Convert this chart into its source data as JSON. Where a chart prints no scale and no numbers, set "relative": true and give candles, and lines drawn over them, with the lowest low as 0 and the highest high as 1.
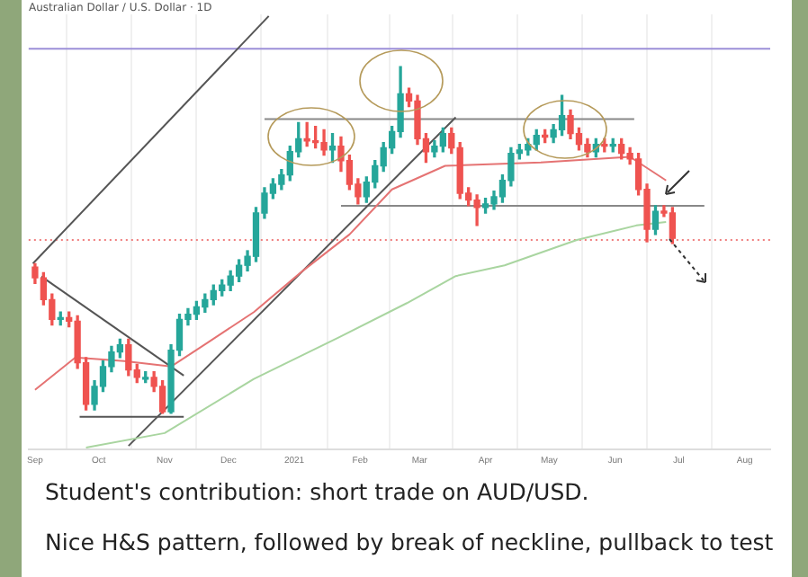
{
  "chart_data": {
    "type": "candlestick",
    "title": "Australian Dollar / U.S. Dollar · 1D",
    "relative": true,
    "legend": false,
    "grid": "x",
    "xlim": [
      "2020-08-29",
      "2021-08-13"
    ],
    "xticks": [
      {
        "value": "2020-09-01",
        "label": "Sep"
      },
      {
        "value": "2020-10-01",
        "label": "Oct"
      },
      {
        "value": "2020-11-01",
        "label": "Nov"
      },
      {
        "value": "2020-12-01",
        "label": "Dec"
      },
      {
        "value": "2021-01-01",
        "label": "2021"
      },
      {
        "value": "2021-02-01",
        "label": "Feb"
      },
      {
        "value": "2021-03-01",
        "label": "Mar"
      },
      {
        "value": "2021-04-01",
        "label": "Apr"
      },
      {
        "value": "2021-05-01",
        "label": "May"
      },
      {
        "value": "2021-06-01",
        "label": "Jun"
      },
      {
        "value": "2021-07-01",
        "label": "Jul"
      },
      {
        "value": "2021-08-01",
        "label": "Aug"
      }
    ],
    "x": [
      "2020-09-01",
      "2020-09-05",
      "2020-09-09",
      "2020-09-13",
      "2020-09-17",
      "2020-09-21",
      "2020-09-25",
      "2020-09-29",
      "2020-10-03",
      "2020-10-07",
      "2020-10-11",
      "2020-10-15",
      "2020-10-19",
      "2020-10-23",
      "2020-10-27",
      "2020-10-31",
      "2020-11-04",
      "2020-11-08",
      "2020-11-12",
      "2020-11-16",
      "2020-11-20",
      "2020-11-24",
      "2020-11-28",
      "2020-12-02",
      "2020-12-06",
      "2020-12-10",
      "2020-12-14",
      "2020-12-18",
      "2020-12-22",
      "2020-12-26",
      "2020-12-30",
      "2021-01-03",
      "2021-01-07",
      "2021-01-11",
      "2021-01-15",
      "2021-01-19",
      "2021-01-23",
      "2021-01-27",
      "2021-01-31",
      "2021-02-04",
      "2021-02-08",
      "2021-02-12",
      "2021-02-16",
      "2021-02-20",
      "2021-02-24",
      "2021-02-28",
      "2021-03-04",
      "2021-03-08",
      "2021-03-12",
      "2021-03-16",
      "2021-03-20",
      "2021-03-24",
      "2021-03-28",
      "2021-04-01",
      "2021-04-05",
      "2021-04-09",
      "2021-04-13",
      "2021-04-17",
      "2021-04-21",
      "2021-04-25",
      "2021-04-29",
      "2021-05-03",
      "2021-05-07",
      "2021-05-11",
      "2021-05-15",
      "2021-05-19",
      "2021-05-23",
      "2021-05-27",
      "2021-05-31",
      "2021-06-04",
      "2021-06-08",
      "2021-06-12",
      "2021-06-16",
      "2021-06-20",
      "2021-06-24",
      "2021-06-28"
    ],
    "ohlc": [
      [
        0.422,
        0.432,
        0.375,
        0.391
      ],
      [
        0.391,
        0.406,
        0.313,
        0.328
      ],
      [
        0.328,
        0.344,
        0.255,
        0.271
      ],
      [
        0.271,
        0.292,
        0.255,
        0.276
      ],
      [
        0.276,
        0.292,
        0.25,
        0.266
      ],
      [
        0.266,
        0.281,
        0.13,
        0.146
      ],
      [
        0.146,
        0.161,
        0.01,
        0.026
      ],
      [
        0.026,
        0.094,
        0.01,
        0.078
      ],
      [
        0.078,
        0.151,
        0.063,
        0.135
      ],
      [
        0.135,
        0.193,
        0.12,
        0.177
      ],
      [
        0.177,
        0.214,
        0.161,
        0.198
      ],
      [
        0.198,
        0.214,
        0.109,
        0.125
      ],
      [
        0.125,
        0.141,
        0.089,
        0.104
      ],
      [
        0.104,
        0.12,
        0.089,
        0.104
      ],
      [
        0.104,
        0.12,
        0.063,
        0.078
      ],
      [
        0.078,
        0.094,
        0,
        0.005
      ],
      [
        0.005,
        0.198,
        0,
        0.182
      ],
      [
        0.182,
        0.286,
        0.167,
        0.271
      ],
      [
        0.271,
        0.302,
        0.255,
        0.286
      ],
      [
        0.286,
        0.323,
        0.271,
        0.307
      ],
      [
        0.307,
        0.344,
        0.292,
        0.328
      ],
      [
        0.328,
        0.37,
        0.313,
        0.354
      ],
      [
        0.354,
        0.385,
        0.339,
        0.37
      ],
      [
        0.37,
        0.411,
        0.354,
        0.396
      ],
      [
        0.396,
        0.443,
        0.38,
        0.427
      ],
      [
        0.427,
        0.469,
        0.411,
        0.453
      ],
      [
        0.453,
        0.594,
        0.438,
        0.578
      ],
      [
        0.578,
        0.651,
        0.563,
        0.635
      ],
      [
        0.635,
        0.677,
        0.62,
        0.661
      ],
      [
        0.661,
        0.703,
        0.646,
        0.688
      ],
      [
        0.688,
        0.771,
        0.672,
        0.755
      ],
      [
        0.755,
        0.839,
        0.74,
        0.792
      ],
      [
        0.792,
        0.839,
        0.771,
        0.786
      ],
      [
        0.786,
        0.828,
        0.766,
        0.781
      ],
      [
        0.781,
        0.818,
        0.745,
        0.76
      ],
      [
        0.76,
        0.807,
        0.724,
        0.771
      ],
      [
        0.771,
        0.797,
        0.698,
        0.729
      ],
      [
        0.729,
        0.745,
        0.646,
        0.661
      ],
      [
        0.661,
        0.677,
        0.604,
        0.625
      ],
      [
        0.625,
        0.682,
        0.609,
        0.667
      ],
      [
        0.667,
        0.729,
        0.651,
        0.714
      ],
      [
        0.714,
        0.781,
        0.698,
        0.766
      ],
      [
        0.766,
        0.828,
        0.75,
        0.813
      ],
      [
        0.813,
        1,
        0.797,
        0.922
      ],
      [
        0.922,
        0.938,
        0.885,
        0.901
      ],
      [
        0.901,
        0.917,
        0.776,
        0.792
      ],
      [
        0.792,
        0.807,
        0.724,
        0.755
      ],
      [
        0.755,
        0.786,
        0.74,
        0.771
      ],
      [
        0.771,
        0.823,
        0.755,
        0.807
      ],
      [
        0.807,
        0.823,
        0.75,
        0.766
      ],
      [
        0.766,
        0.781,
        0.62,
        0.635
      ],
      [
        0.635,
        0.651,
        0.599,
        0.615
      ],
      [
        0.615,
        0.63,
        0.542,
        0.594
      ],
      [
        0.594,
        0.62,
        0.578,
        0.604
      ],
      [
        0.604,
        0.641,
        0.589,
        0.625
      ],
      [
        0.625,
        0.688,
        0.609,
        0.672
      ],
      [
        0.672,
        0.766,
        0.656,
        0.75
      ],
      [
        0.75,
        0.776,
        0.734,
        0.76
      ],
      [
        0.76,
        0.792,
        0.745,
        0.776
      ],
      [
        0.776,
        0.818,
        0.76,
        0.802
      ],
      [
        0.802,
        0.818,
        0.781,
        0.797
      ],
      [
        0.797,
        0.833,
        0.781,
        0.818
      ],
      [
        0.818,
        0.917,
        0.802,
        0.859
      ],
      [
        0.859,
        0.875,
        0.792,
        0.807
      ],
      [
        0.807,
        0.823,
        0.76,
        0.776
      ],
      [
        0.776,
        0.792,
        0.74,
        0.755
      ],
      [
        0.755,
        0.792,
        0.74,
        0.776
      ],
      [
        0.776,
        0.792,
        0.755,
        0.771
      ],
      [
        0.771,
        0.792,
        0.755,
        0.776
      ],
      [
        0.776,
        0.792,
        0.734,
        0.75
      ],
      [
        0.75,
        0.766,
        0.719,
        0.734
      ],
      [
        0.734,
        0.75,
        0.63,
        0.646
      ],
      [
        0.646,
        0.661,
        0.495,
        0.531
      ],
      [
        0.531,
        0.599,
        0.516,
        0.583
      ],
      [
        0.583,
        0.599,
        0.568,
        0.578
      ],
      [
        0.578,
        0.594,
        0.49,
        0.505
      ]
    ],
    "colors": [
      "#ef5350",
      "#ef5350",
      "#ef5350",
      "#26a69a",
      "#ef5350",
      "#ef5350",
      "#ef5350",
      "#26a69a",
      "#26a69a",
      "#26a69a",
      "#26a69a",
      "#ef5350",
      "#ef5350",
      "#26a69a",
      "#ef5350",
      "#ef5350",
      "#26a69a",
      "#26a69a",
      "#26a69a",
      "#26a69a",
      "#26a69a",
      "#26a69a",
      "#26a69a",
      "#26a69a",
      "#26a69a",
      "#26a69a",
      "#26a69a",
      "#26a69a",
      "#26a69a",
      "#26a69a",
      "#26a69a",
      "#26a69a",
      "#ef5350",
      "#ef5350",
      "#ef5350",
      "#26a69a",
      "#ef5350",
      "#ef5350",
      "#ef5350",
      "#26a69a",
      "#26a69a",
      "#26a69a",
      "#26a69a",
      "#26a69a",
      "#ef5350",
      "#ef5350",
      "#ef5350",
      "#26a69a",
      "#26a69a",
      "#ef5350",
      "#ef5350",
      "#ef5350",
      "#ef5350",
      "#26a69a",
      "#26a69a",
      "#26a69a",
      "#26a69a",
      "#26a69a",
      "#26a69a",
      "#26a69a",
      "#ef5350",
      "#26a69a",
      "#26a69a",
      "#ef5350",
      "#ef5350",
      "#ef5350",
      "#26a69a",
      "#ef5350",
      "#26a69a",
      "#ef5350",
      "#ef5350",
      "#ef5350",
      "#ef5350",
      "#26a69a",
      "#ef5350",
      "#ef5350"
    ],
    "series": [
      {
        "type": "line",
        "color": "#a9d5a0",
        "x": [
          "2020-09-25",
          "2020-11-01",
          "2020-12-13",
          "2021-01-22",
          "2021-02-23",
          "2021-03-18",
          "2021-04-10",
          "2021-05-14",
          "2021-06-11",
          "2021-06-25"
        ],
        "values": [
          -0.099,
          -0.057,
          0.099,
          0.219,
          0.318,
          0.396,
          0.427,
          0.5,
          0.542,
          0.552
        ]
      },
      {
        "type": "line",
        "color": "#e57373",
        "x": [
          "2020-09-01",
          "2020-09-20",
          "2020-10-13",
          "2020-11-04",
          "2020-11-21",
          "2020-12-13",
          "2021-01-05",
          "2021-01-27",
          "2021-02-16",
          "2021-03-13",
          "2021-04-27",
          "2021-06-08",
          "2021-06-25"
        ],
        "values": [
          0.068,
          0.161,
          0.151,
          0.135,
          0.203,
          0.292,
          0.411,
          0.516,
          0.646,
          0.714,
          0.724,
          0.74,
          0.672
        ]
      },
      {
        "type": "line",
        "color": "#555555",
        "x": [
          "2020-09-04",
          "2020-11-10"
        ],
        "values": [
          0.395,
          0.109
        ]
      },
      {
        "type": "line",
        "color": "#555555",
        "x": [
          "2020-09-22",
          "2020-11-10"
        ],
        "values": [
          -0.01,
          -0.01
        ]
      },
      {
        "type": "line",
        "color": "#555555",
        "x": [
          "2020-08-31",
          "2020-12-20"
        ],
        "values": [
          0.432,
          1.146
        ]
      },
      {
        "type": "line",
        "color": "#555555",
        "x": [
          "2020-10-15",
          "2021-03-18"
        ],
        "values": [
          -0.094,
          0.854
        ]
      },
      {
        "type": "line",
        "color": "#888888",
        "x": [
          "2020-12-18",
          "2021-06-10"
        ],
        "values": [
          0.849,
          0.849
        ]
      },
      {
        "type": "line",
        "color": "#888888",
        "x": [
          "2021-01-23",
          "2021-07-13"
        ],
        "values": [
          0.599,
          0.599
        ]
      }
    ],
    "ref_lines": [
      {
        "axis": "y",
        "value": 1.052,
        "color": "#9c8fd8",
        "line_style": "solid"
      },
      {
        "axis": "y",
        "value": 0.5,
        "color": "#f08080",
        "line_style": "dotted"
      }
    ],
    "annotations": [
      "Student's contribution: short trade on AUD/USD.",
      "Nice H&S pattern, followed by break of neckline, pullback to test"
    ]
  }
}
